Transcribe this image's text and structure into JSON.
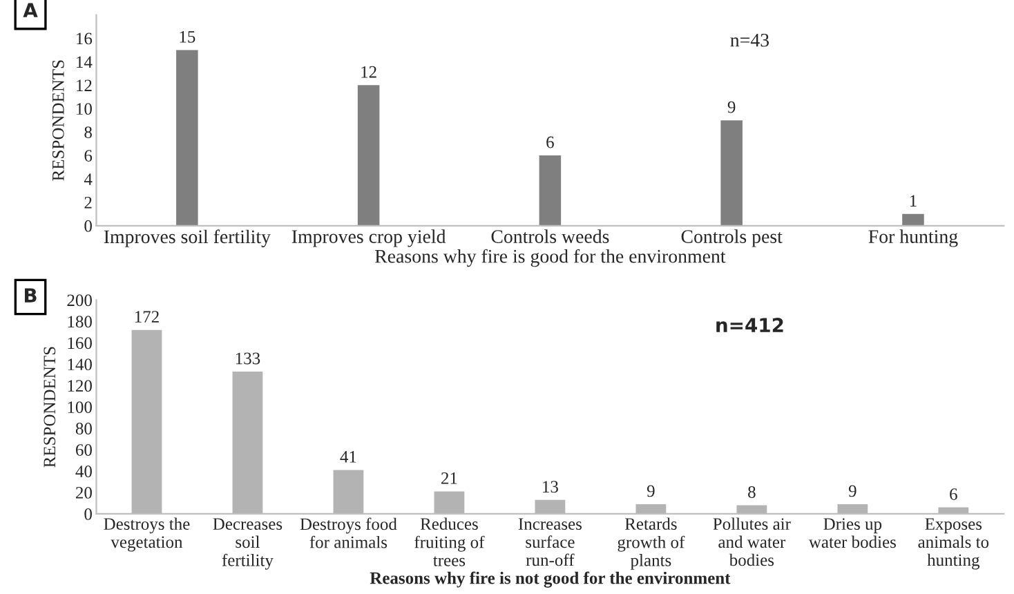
{
  "chart_data": [
    {
      "type": "bar",
      "ylabel": "RESPONDENTS",
      "xlabel": "Reasons why fire is good for the environment",
      "categories": [
        "Improves soil fertility",
        "Improves crop yield",
        "Controls weeds",
        "Controls pest",
        "For hunting"
      ],
      "values": [
        15,
        12,
        6,
        9,
        1
      ],
      "color": "#7f7f7f",
      "ylim": [
        0,
        18
      ],
      "yticks": [
        0,
        2,
        4,
        6,
        8,
        10,
        12,
        14,
        16
      ],
      "data_labels": true,
      "grid": false,
      "annotations": [
        "A",
        "n=43"
      ]
    },
    {
      "type": "bar",
      "ylabel": "RESPONDENTS",
      "xlabel": "Reasons why fire is not good for the environment",
      "categories": [
        "Destroys the vegetation",
        "Decreases soil fertility",
        "Destroys food for animals",
        "Reduces fruiting of trees",
        "Increases surface run-off",
        "Retards growth of plants",
        "Pollutes air and water bodies",
        "Dries up water bodies",
        "Exposes animals to hunting"
      ],
      "values": [
        172,
        133,
        41,
        21,
        13,
        9,
        8,
        9,
        6
      ],
      "color": "#b3b3b3",
      "ylim": [
        0,
        200
      ],
      "yticks": [
        0,
        20,
        40,
        60,
        80,
        100,
        120,
        140,
        160,
        180,
        200
      ],
      "data_labels": true,
      "grid": false,
      "annotations": [
        "B",
        "n=412"
      ]
    }
  ]
}
